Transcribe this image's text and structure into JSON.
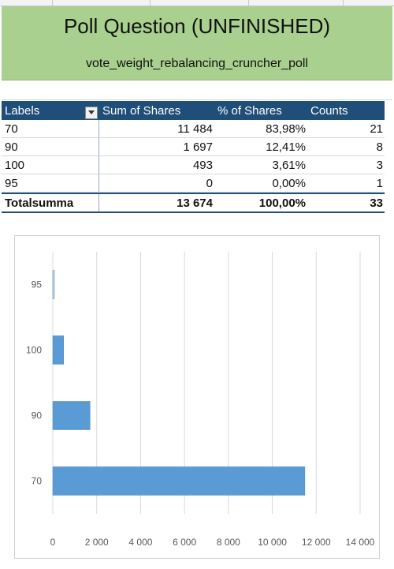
{
  "sheet": {
    "title": "Poll Question (UNFINISHED)",
    "subtitle": "vote_weight_rebalancing_cruncher_poll",
    "header_color": "#a9d08e",
    "table_header_color": "#1f4e79",
    "bar_color": "#5b9bd5"
  },
  "pivot": {
    "headers": [
      "Labels",
      "Sum of Shares",
      "% of Shares",
      "Counts"
    ],
    "filter_icon": "dropdown-arrow-icon",
    "rows": [
      {
        "label": "70",
        "shares": "11 484",
        "pct": "83,98%",
        "count": "21"
      },
      {
        "label": "90",
        "shares": "1 697",
        "pct": "12,41%",
        "count": "8"
      },
      {
        "label": "100",
        "shares": "493",
        "pct": "3,61%",
        "count": "3"
      },
      {
        "label": "95",
        "shares": "0",
        "pct": "0,00%",
        "count": "1"
      }
    ],
    "total": {
      "label": "Totalsumma",
      "shares": "13 674",
      "pct": "100,00%",
      "count": "33"
    }
  },
  "chart_data": {
    "type": "bar",
    "orientation": "horizontal",
    "categories": [
      "70",
      "90",
      "100",
      "95"
    ],
    "values": [
      11484,
      1697,
      493,
      0
    ],
    "xlim": [
      0,
      14000
    ],
    "xticks": [
      "0",
      "2 000",
      "4 000",
      "6 000",
      "8 000",
      "10 000",
      "12 000",
      "14 000"
    ],
    "grid": true,
    "legend": "none"
  }
}
